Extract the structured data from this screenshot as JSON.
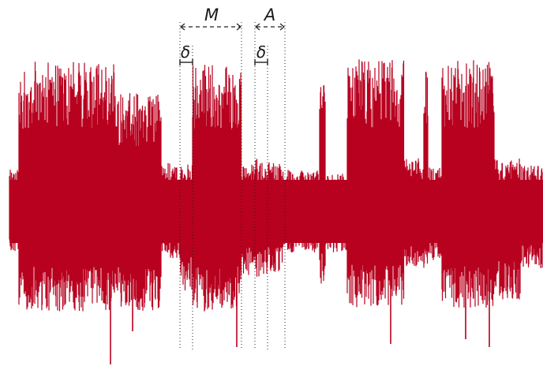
{
  "colors": {
    "signal": "#b8001f",
    "annotation": "#222222",
    "background": "#ffffff"
  },
  "labels": {
    "m_span": "M",
    "a_span": "A",
    "delta_1": "δ",
    "delta_2": "δ"
  }
}
